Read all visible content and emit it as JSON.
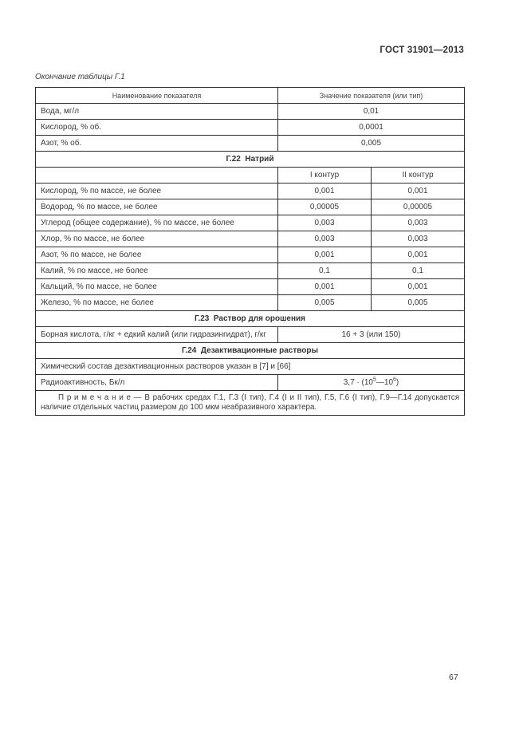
{
  "page": {
    "doc_header": "ГОСТ 31901—2013",
    "table_caption": "Окончание таблицы Г.1",
    "page_number": "67"
  },
  "table": {
    "header": {
      "col_name": "Наименование показателя",
      "col_value": "Значение показателя (или тип)"
    },
    "top_rows": [
      {
        "name": "Вода, мг/л",
        "value": "0,01"
      },
      {
        "name": "Кислород, % об.",
        "value": "0,0001"
      },
      {
        "name": "Азот, % об.",
        "value": "0,005"
      }
    ],
    "section_g22": "Г.22  Натрий",
    "circuit_header": {
      "col1": "I контур",
      "col2": "II контур"
    },
    "sodium_rows": [
      {
        "name": "Кислород, % по массе, не более",
        "v1": "0,001",
        "v2": "0,001"
      },
      {
        "name": "Водород, % по массе, не более",
        "v1": "0,00005",
        "v2": "0,00005"
      },
      {
        "name": "Углерод (общее содержание), % по массе, не более",
        "v1": "0,003",
        "v2": "0,003"
      },
      {
        "name": "Хлор, % по массе, не более",
        "v1": "0,003",
        "v2": "0,003"
      },
      {
        "name": "Азот, % по массе, не более",
        "v1": "0,001",
        "v2": "0,001"
      },
      {
        "name": "Калий, % по массе, не более",
        "v1": "0,1",
        "v2": "0,1"
      },
      {
        "name": "Кальций, % по массе, не более",
        "v1": "0,001",
        "v2": "0,001"
      },
      {
        "name": "Железо, % по массе, не более",
        "v1": "0,005",
        "v2": "0,005"
      }
    ],
    "section_g23": "Г.23  Раствор для орошения",
    "boric_row": {
      "name": "Борная кислота, г/кг + едкий калий (или гидразингидрат), г/кг",
      "value": "16 + 3 (или 150)"
    },
    "section_g24": "Г.24  Дезактивационные растворы",
    "chemical_row": "Химический состав дезактивационных растворов указан в [7] и [66]",
    "radioactivity_row": {
      "name": "Радиоактивность, Бк/л",
      "value_prefix": "3,7 · (10",
      "value_sup1": "5",
      "value_mid": "—10",
      "value_sup2": "6",
      "value_suffix": ")"
    },
    "note": "П р и м е ч а н и е — В рабочих средах Г.1, Г.3 (I тип), Г.4 (I и II тип), Г.5, Г.6 (I тип), Г.9—Г.14 допускается наличие отдельных частиц размером до 100 мкм неабразивного характера."
  }
}
